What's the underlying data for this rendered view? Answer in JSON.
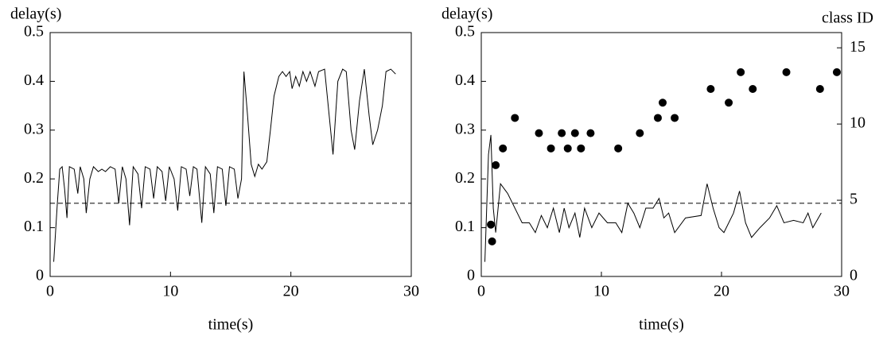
{
  "chart_data": [
    {
      "type": "line",
      "ylabel": "delay(s)",
      "xlabel": "time(s)",
      "xlim": [
        0,
        30
      ],
      "xticks": [
        0,
        10,
        20,
        30
      ],
      "ylim": [
        0,
        0.5
      ],
      "yticks": [
        0,
        0.1,
        0.2,
        0.3,
        0.4,
        0.5
      ],
      "reference_line": 0.15,
      "series": [
        {
          "type": "line",
          "color": "#000000",
          "x": [
            0.3,
            0.6,
            0.8,
            1.0,
            1.2,
            1.4,
            1.6,
            2.0,
            2.3,
            2.5,
            2.8,
            3.0,
            3.3,
            3.6,
            4.0,
            4.3,
            4.6,
            5.0,
            5.4,
            5.7,
            6.0,
            6.3,
            6.6,
            6.9,
            7.3,
            7.6,
            7.9,
            8.3,
            8.6,
            8.9,
            9.3,
            9.6,
            9.9,
            10.3,
            10.6,
            10.9,
            11.3,
            11.6,
            11.9,
            12.2,
            12.6,
            12.9,
            13.3,
            13.6,
            13.9,
            14.3,
            14.6,
            14.9,
            15.3,
            15.6,
            15.9,
            16.1,
            16.4,
            16.7,
            17.0,
            17.3,
            17.6,
            18.0,
            18.3,
            18.6,
            19.0,
            19.3,
            19.6,
            19.9,
            20.1,
            20.4,
            20.7,
            21.0,
            21.3,
            21.6,
            22.0,
            22.3,
            22.8,
            23.1,
            23.5,
            23.9,
            24.3,
            24.6,
            25.0,
            25.3,
            25.7,
            26.1,
            26.5,
            26.8,
            27.2,
            27.6,
            27.9,
            28.3,
            28.7
          ],
          "values": [
            0.03,
            0.15,
            0.22,
            0.225,
            0.18,
            0.12,
            0.225,
            0.22,
            0.17,
            0.225,
            0.2,
            0.13,
            0.2,
            0.225,
            0.215,
            0.22,
            0.215,
            0.225,
            0.22,
            0.15,
            0.225,
            0.2,
            0.105,
            0.225,
            0.21,
            0.14,
            0.225,
            0.22,
            0.16,
            0.225,
            0.215,
            0.155,
            0.225,
            0.2,
            0.135,
            0.225,
            0.22,
            0.165,
            0.225,
            0.22,
            0.11,
            0.225,
            0.21,
            0.13,
            0.225,
            0.22,
            0.145,
            0.225,
            0.22,
            0.16,
            0.2,
            0.42,
            0.33,
            0.23,
            0.205,
            0.23,
            0.22,
            0.235,
            0.3,
            0.37,
            0.41,
            0.42,
            0.41,
            0.42,
            0.385,
            0.41,
            0.39,
            0.42,
            0.4,
            0.42,
            0.39,
            0.42,
            0.425,
            0.35,
            0.25,
            0.4,
            0.425,
            0.42,
            0.3,
            0.26,
            0.36,
            0.425,
            0.33,
            0.27,
            0.3,
            0.35,
            0.42,
            0.425,
            0.415
          ]
        }
      ]
    },
    {
      "type": "line",
      "ylabel": "delay(s)",
      "xlabel": "time(s)",
      "y2label": "class ID",
      "xlim": [
        0,
        30
      ],
      "xticks": [
        0,
        10,
        20,
        30
      ],
      "ylim": [
        0,
        0.5
      ],
      "yticks": [
        0,
        0.1,
        0.2,
        0.3,
        0.4,
        0.5
      ],
      "y2lim": [
        0,
        16
      ],
      "y2ticks": [
        0,
        5,
        10,
        15
      ],
      "reference_line": 0.15,
      "series": [
        {
          "type": "line",
          "color": "#000000",
          "x": [
            0.3,
            0.6,
            0.8,
            1.0,
            1.2,
            1.6,
            2.2,
            2.6,
            3.0,
            3.4,
            4.0,
            4.5,
            5.0,
            5.5,
            6.0,
            6.5,
            6.9,
            7.3,
            7.8,
            8.2,
            8.6,
            9.2,
            9.8,
            10.5,
            11.2,
            11.7,
            12.2,
            12.7,
            13.2,
            13.7,
            14.3,
            14.8,
            15.2,
            15.6,
            16.1,
            17.0,
            18.3,
            18.8,
            19.3,
            19.8,
            20.2,
            21.0,
            21.5,
            22.0,
            22.5,
            23.2,
            24.0,
            24.6,
            25.2,
            26.0,
            26.8,
            27.2,
            27.6,
            28.3
          ],
          "values": [
            0.03,
            0.25,
            0.29,
            0.14,
            0.09,
            0.19,
            0.17,
            0.15,
            0.13,
            0.11,
            0.11,
            0.09,
            0.125,
            0.1,
            0.14,
            0.09,
            0.14,
            0.1,
            0.13,
            0.08,
            0.14,
            0.1,
            0.13,
            0.11,
            0.11,
            0.09,
            0.15,
            0.13,
            0.1,
            0.14,
            0.14,
            0.16,
            0.12,
            0.13,
            0.09,
            0.12,
            0.125,
            0.19,
            0.14,
            0.1,
            0.09,
            0.13,
            0.175,
            0.11,
            0.08,
            0.1,
            0.12,
            0.145,
            0.11,
            0.115,
            0.11,
            0.13,
            0.1,
            0.13
          ]
        },
        {
          "type": "scatter",
          "axis": "y2",
          "color": "#000000",
          "x": [
            0.8,
            0.9,
            1.2,
            1.8,
            2.8,
            4.8,
            5.8,
            6.7,
            7.2,
            7.8,
            8.3,
            9.1,
            11.4,
            13.2,
            14.7,
            15.1,
            16.1,
            19.1,
            20.6,
            21.6,
            22.6,
            25.4,
            28.2,
            29.6
          ],
          "values": [
            3.4,
            2.3,
            7.3,
            8.4,
            10.4,
            9.4,
            8.4,
            9.4,
            8.4,
            9.4,
            8.4,
            9.4,
            8.4,
            9.4,
            10.4,
            11.4,
            10.4,
            12.3,
            11.4,
            13.4,
            12.3,
            13.4,
            12.3,
            13.4
          ]
        }
      ]
    }
  ]
}
